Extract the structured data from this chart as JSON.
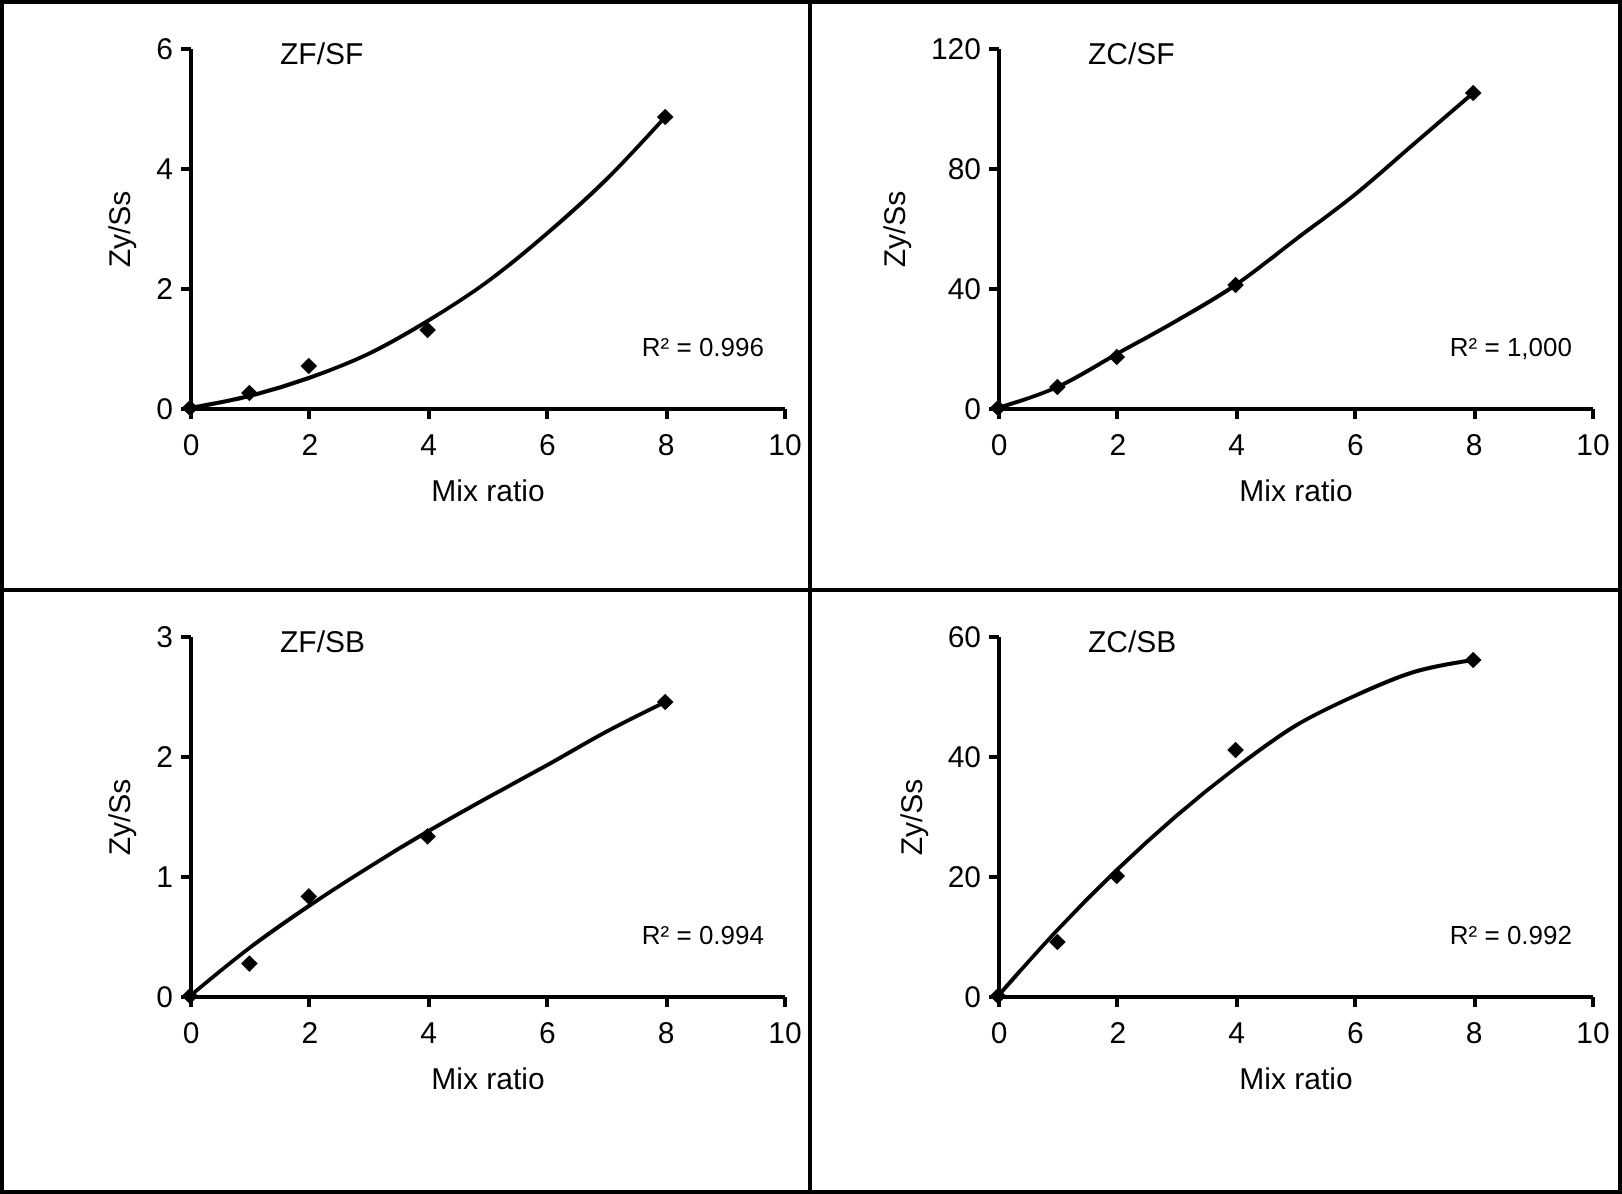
{
  "chart_data": [
    {
      "type": "scatter",
      "title": "ZF/SF",
      "xlabel": "Mix ratio",
      "ylabel": "Zy/Ss",
      "annotations": [
        "R² = 0.996"
      ],
      "xlim": [
        0,
        10
      ],
      "xticks": [
        0,
        2,
        4,
        6,
        8,
        10
      ],
      "ylim": [
        0,
        6
      ],
      "yticks": [
        0,
        2,
        4,
        6
      ],
      "series": [
        {
          "marker": "diamond",
          "color": "#000000",
          "x": [
            0,
            1,
            2,
            4,
            8
          ],
          "values": [
            0,
            0.25,
            0.7,
            1.3,
            4.85
          ]
        },
        {
          "type": "line",
          "color": "#000000",
          "x": [
            0,
            1,
            2,
            3,
            4,
            5,
            6,
            7,
            8
          ],
          "values": [
            0,
            0.2,
            0.5,
            0.9,
            1.45,
            2.1,
            2.9,
            3.8,
            4.85
          ]
        }
      ]
    },
    {
      "type": "scatter",
      "title": "ZC/SF",
      "xlabel": "Mix ratio",
      "ylabel": "Zy/Ss",
      "annotations": [
        "R² = 1,000"
      ],
      "xlim": [
        0,
        10
      ],
      "xticks": [
        0,
        2,
        4,
        6,
        8,
        10
      ],
      "ylim": [
        0,
        120
      ],
      "yticks": [
        0,
        40,
        80,
        120
      ],
      "series": [
        {
          "marker": "diamond",
          "color": "#000000",
          "x": [
            0,
            1,
            2,
            4,
            8
          ],
          "values": [
            0,
            7,
            17,
            41,
            105
          ]
        },
        {
          "type": "line",
          "color": "#000000",
          "x": [
            0,
            1,
            2,
            3,
            4,
            5,
            6,
            7,
            8
          ],
          "values": [
            0,
            7,
            18,
            29,
            41,
            56,
            71,
            88,
            105
          ]
        }
      ]
    },
    {
      "type": "scatter",
      "title": "ZF/SB",
      "xlabel": "Mix ratio",
      "ylabel": "Zy/Ss",
      "annotations": [
        "R² = 0.994"
      ],
      "xlim": [
        0,
        10
      ],
      "xticks": [
        0,
        2,
        4,
        6,
        8,
        10
      ],
      "ylim": [
        0,
        3
      ],
      "yticks": [
        0,
        1,
        2,
        3
      ],
      "series": [
        {
          "marker": "diamond",
          "color": "#000000",
          "x": [
            0,
            1,
            2,
            4,
            8
          ],
          "values": [
            0,
            0.27,
            0.83,
            1.33,
            2.45
          ]
        },
        {
          "type": "line",
          "color": "#000000",
          "x": [
            0,
            1,
            2,
            3,
            4,
            5,
            6,
            7,
            8
          ],
          "values": [
            0,
            0.4,
            0.75,
            1.07,
            1.37,
            1.65,
            1.92,
            2.2,
            2.45
          ]
        }
      ]
    },
    {
      "type": "scatter",
      "title": "ZC/SB",
      "xlabel": "Mix ratio",
      "ylabel": "Zy/Ss",
      "annotations": [
        "R² = 0.992"
      ],
      "xlim": [
        0,
        10
      ],
      "xticks": [
        0,
        2,
        4,
        6,
        8,
        10
      ],
      "ylim": [
        0,
        60
      ],
      "yticks": [
        0,
        20,
        40,
        60
      ],
      "series": [
        {
          "marker": "diamond",
          "color": "#000000",
          "x": [
            0,
            1,
            2,
            4,
            8
          ],
          "values": [
            0,
            9,
            20,
            41,
            56
          ]
        },
        {
          "type": "line",
          "color": "#000000",
          "x": [
            0,
            1,
            2,
            3,
            4,
            5,
            6,
            7,
            8
          ],
          "values": [
            0,
            11,
            21,
            30,
            38,
            45,
            50,
            54,
            56
          ]
        }
      ]
    }
  ]
}
